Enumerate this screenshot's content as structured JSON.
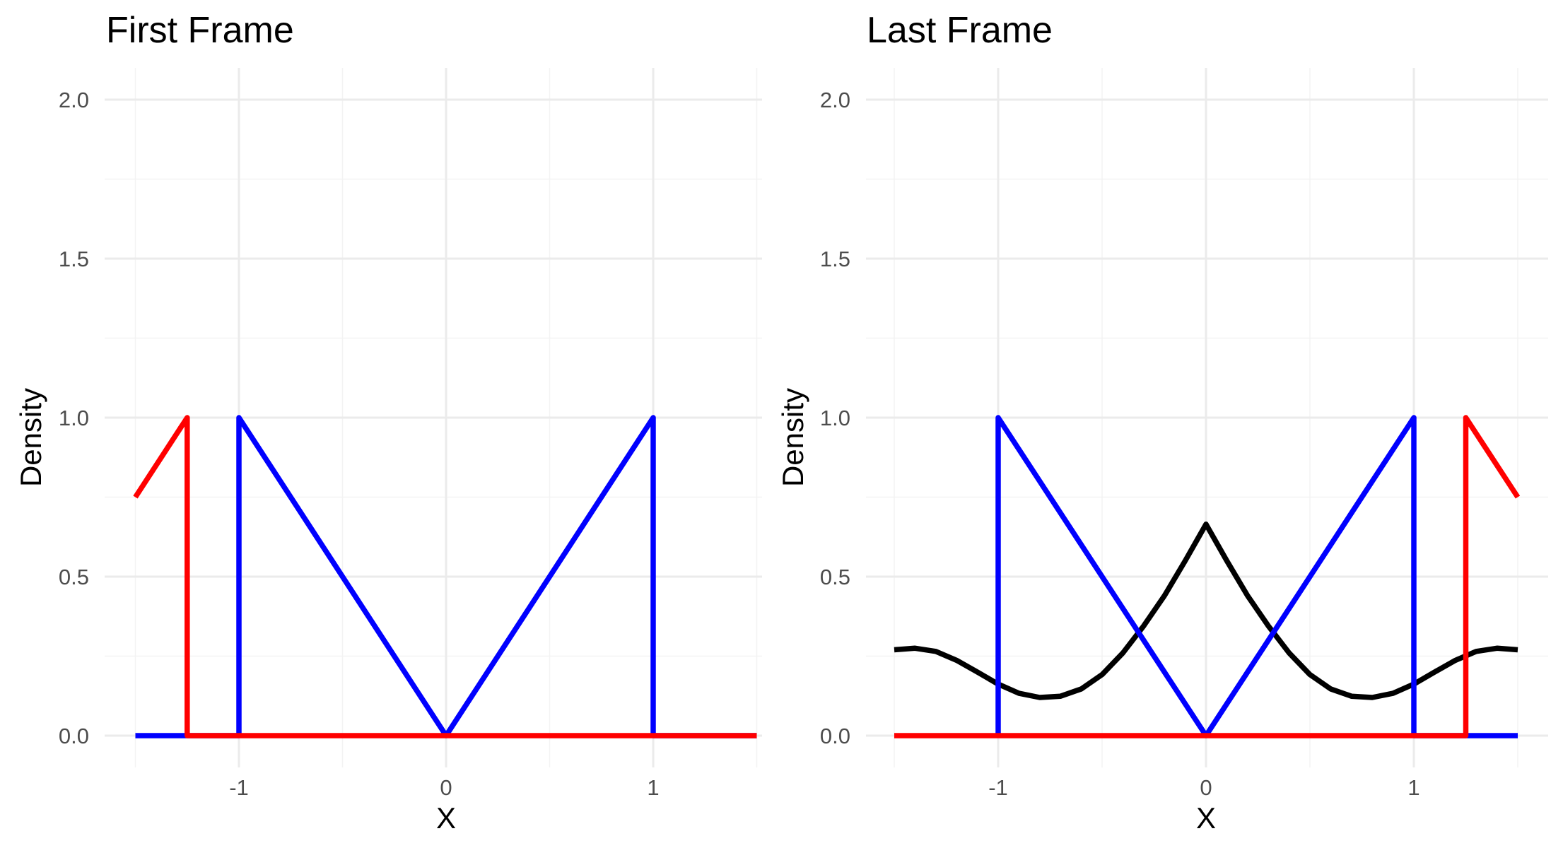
{
  "chart_data": [
    {
      "type": "line",
      "title": "First Frame",
      "xlabel": "X",
      "ylabel": "Density",
      "xlim": [
        -1.5,
        1.5
      ],
      "ylim": [
        0,
        2.0
      ],
      "x_ticks": [
        -1,
        0,
        1
      ],
      "x_tick_labels": [
        "-1",
        "0",
        "1"
      ],
      "y_ticks": [
        0,
        0.5,
        1.0,
        1.5,
        2.0
      ],
      "y_tick_labels": [
        "0.0",
        "0.5",
        "1.0",
        "1.5",
        "2.0"
      ],
      "grid": true,
      "series": [
        {
          "color": "#0000ff",
          "points": [
            [
              -1.5,
              0
            ],
            [
              -1.25,
              0
            ],
            [
              -1.0,
              0
            ],
            [
              -1.0,
              1.0
            ],
            [
              0,
              0
            ],
            [
              1.0,
              1.0
            ],
            [
              1.0,
              0
            ],
            [
              1.5,
              0
            ]
          ]
        },
        {
          "color": "#ff0000",
          "points": [
            [
              -1.5,
              0.75
            ],
            [
              -1.25,
              1.0
            ],
            [
              -1.25,
              0
            ],
            [
              1.5,
              0
            ]
          ]
        }
      ]
    },
    {
      "type": "line",
      "title": "Last Frame",
      "xlabel": "X",
      "ylabel": "Density",
      "xlim": [
        -1.5,
        1.5
      ],
      "ylim": [
        0,
        2.0
      ],
      "x_ticks": [
        -1,
        0,
        1
      ],
      "x_tick_labels": [
        "-1",
        "0",
        "1"
      ],
      "y_ticks": [
        0,
        0.5,
        1.0,
        1.5,
        2.0
      ],
      "y_tick_labels": [
        "0.0",
        "0.5",
        "1.0",
        "1.5",
        "2.0"
      ],
      "grid": true,
      "series": [
        {
          "color": "#000000",
          "points": [
            [
              -1.5,
              0.27
            ],
            [
              -1.4,
              0.275
            ],
            [
              -1.3,
              0.265
            ],
            [
              -1.2,
              0.237
            ],
            [
              -1.1,
              0.2
            ],
            [
              -1.0,
              0.162
            ],
            [
              -0.9,
              0.133
            ],
            [
              -0.8,
              0.12
            ],
            [
              -0.7,
              0.124
            ],
            [
              -0.6,
              0.147
            ],
            [
              -0.5,
              0.192
            ],
            [
              -0.4,
              0.26
            ],
            [
              -0.3,
              0.345
            ],
            [
              -0.2,
              0.44
            ],
            [
              -0.1,
              0.55
            ],
            [
              0,
              0.665
            ],
            [
              0.1,
              0.55
            ],
            [
              0.2,
              0.44
            ],
            [
              0.3,
              0.345
            ],
            [
              0.4,
              0.26
            ],
            [
              0.5,
              0.192
            ],
            [
              0.6,
              0.147
            ],
            [
              0.7,
              0.124
            ],
            [
              0.8,
              0.12
            ],
            [
              0.9,
              0.133
            ],
            [
              1.0,
              0.162
            ],
            [
              1.1,
              0.2
            ],
            [
              1.2,
              0.237
            ],
            [
              1.3,
              0.265
            ],
            [
              1.4,
              0.275
            ],
            [
              1.5,
              0.27
            ]
          ]
        },
        {
          "color": "#0000ff",
          "points": [
            [
              -1.0,
              0
            ],
            [
              -1.0,
              1.0
            ],
            [
              0,
              0
            ],
            [
              1.0,
              1.0
            ],
            [
              1.0,
              0
            ],
            [
              1.25,
              0
            ],
            [
              1.5,
              0
            ]
          ]
        },
        {
          "color": "#ff0000",
          "points": [
            [
              -1.5,
              0
            ],
            [
              1.25,
              0
            ],
            [
              1.25,
              1.0
            ],
            [
              1.5,
              0.75
            ]
          ]
        }
      ]
    }
  ]
}
